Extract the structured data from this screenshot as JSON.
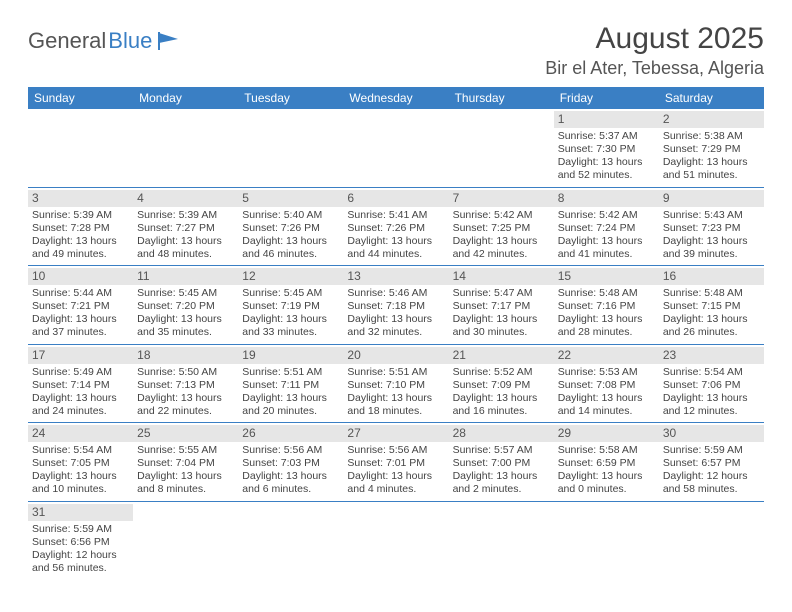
{
  "logo": {
    "text1": "General",
    "text2": "Blue"
  },
  "title": "August 2025",
  "location": "Bir el Ater, Tebessa, Algeria",
  "colors": {
    "header_bg": "#3a7fc4",
    "header_text": "#ffffff",
    "daynum_bg": "#e6e6e6",
    "row_border": "#3a7fc4",
    "text": "#444444"
  },
  "weekdays": [
    "Sunday",
    "Monday",
    "Tuesday",
    "Wednesday",
    "Thursday",
    "Friday",
    "Saturday"
  ],
  "weeks": [
    [
      null,
      null,
      null,
      null,
      null,
      {
        "n": "1",
        "sr": "5:37 AM",
        "ss": "7:30 PM",
        "dl": "13 hours and 52 minutes."
      },
      {
        "n": "2",
        "sr": "5:38 AM",
        "ss": "7:29 PM",
        "dl": "13 hours and 51 minutes."
      }
    ],
    [
      {
        "n": "3",
        "sr": "5:39 AM",
        "ss": "7:28 PM",
        "dl": "13 hours and 49 minutes."
      },
      {
        "n": "4",
        "sr": "5:39 AM",
        "ss": "7:27 PM",
        "dl": "13 hours and 48 minutes."
      },
      {
        "n": "5",
        "sr": "5:40 AM",
        "ss": "7:26 PM",
        "dl": "13 hours and 46 minutes."
      },
      {
        "n": "6",
        "sr": "5:41 AM",
        "ss": "7:26 PM",
        "dl": "13 hours and 44 minutes."
      },
      {
        "n": "7",
        "sr": "5:42 AM",
        "ss": "7:25 PM",
        "dl": "13 hours and 42 minutes."
      },
      {
        "n": "8",
        "sr": "5:42 AM",
        "ss": "7:24 PM",
        "dl": "13 hours and 41 minutes."
      },
      {
        "n": "9",
        "sr": "5:43 AM",
        "ss": "7:23 PM",
        "dl": "13 hours and 39 minutes."
      }
    ],
    [
      {
        "n": "10",
        "sr": "5:44 AM",
        "ss": "7:21 PM",
        "dl": "13 hours and 37 minutes."
      },
      {
        "n": "11",
        "sr": "5:45 AM",
        "ss": "7:20 PM",
        "dl": "13 hours and 35 minutes."
      },
      {
        "n": "12",
        "sr": "5:45 AM",
        "ss": "7:19 PM",
        "dl": "13 hours and 33 minutes."
      },
      {
        "n": "13",
        "sr": "5:46 AM",
        "ss": "7:18 PM",
        "dl": "13 hours and 32 minutes."
      },
      {
        "n": "14",
        "sr": "5:47 AM",
        "ss": "7:17 PM",
        "dl": "13 hours and 30 minutes."
      },
      {
        "n": "15",
        "sr": "5:48 AM",
        "ss": "7:16 PM",
        "dl": "13 hours and 28 minutes."
      },
      {
        "n": "16",
        "sr": "5:48 AM",
        "ss": "7:15 PM",
        "dl": "13 hours and 26 minutes."
      }
    ],
    [
      {
        "n": "17",
        "sr": "5:49 AM",
        "ss": "7:14 PM",
        "dl": "13 hours and 24 minutes."
      },
      {
        "n": "18",
        "sr": "5:50 AM",
        "ss": "7:13 PM",
        "dl": "13 hours and 22 minutes."
      },
      {
        "n": "19",
        "sr": "5:51 AM",
        "ss": "7:11 PM",
        "dl": "13 hours and 20 minutes."
      },
      {
        "n": "20",
        "sr": "5:51 AM",
        "ss": "7:10 PM",
        "dl": "13 hours and 18 minutes."
      },
      {
        "n": "21",
        "sr": "5:52 AM",
        "ss": "7:09 PM",
        "dl": "13 hours and 16 minutes."
      },
      {
        "n": "22",
        "sr": "5:53 AM",
        "ss": "7:08 PM",
        "dl": "13 hours and 14 minutes."
      },
      {
        "n": "23",
        "sr": "5:54 AM",
        "ss": "7:06 PM",
        "dl": "13 hours and 12 minutes."
      }
    ],
    [
      {
        "n": "24",
        "sr": "5:54 AM",
        "ss": "7:05 PM",
        "dl": "13 hours and 10 minutes."
      },
      {
        "n": "25",
        "sr": "5:55 AM",
        "ss": "7:04 PM",
        "dl": "13 hours and 8 minutes."
      },
      {
        "n": "26",
        "sr": "5:56 AM",
        "ss": "7:03 PM",
        "dl": "13 hours and 6 minutes."
      },
      {
        "n": "27",
        "sr": "5:56 AM",
        "ss": "7:01 PM",
        "dl": "13 hours and 4 minutes."
      },
      {
        "n": "28",
        "sr": "5:57 AM",
        "ss": "7:00 PM",
        "dl": "13 hours and 2 minutes."
      },
      {
        "n": "29",
        "sr": "5:58 AM",
        "ss": "6:59 PM",
        "dl": "13 hours and 0 minutes."
      },
      {
        "n": "30",
        "sr": "5:59 AM",
        "ss": "6:57 PM",
        "dl": "12 hours and 58 minutes."
      }
    ],
    [
      {
        "n": "31",
        "sr": "5:59 AM",
        "ss": "6:56 PM",
        "dl": "12 hours and 56 minutes."
      },
      null,
      null,
      null,
      null,
      null,
      null
    ]
  ],
  "labels": {
    "sunrise": "Sunrise: ",
    "sunset": "Sunset: ",
    "daylight": "Daylight: "
  }
}
